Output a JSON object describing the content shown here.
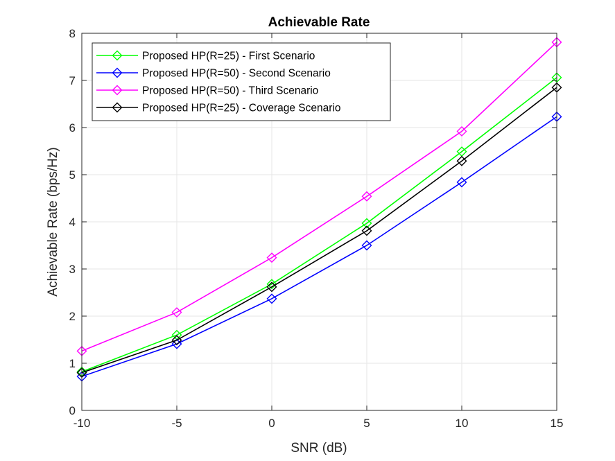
{
  "chart_data": {
    "type": "line",
    "title": "Achievable Rate",
    "xlabel": "SNR (dB)",
    "ylabel": "Achievable Rate (bps/Hz)",
    "xlim": [
      -10,
      15
    ],
    "ylim": [
      0,
      8
    ],
    "xticks": [
      -10,
      -5,
      0,
      5,
      10,
      15
    ],
    "yticks": [
      0,
      1,
      2,
      3,
      4,
      5,
      6,
      7,
      8
    ],
    "xtick_labels": [
      "-10",
      "-5",
      "0",
      "5",
      "10",
      "15"
    ],
    "ytick_labels": [
      "0",
      "1",
      "2",
      "3",
      "4",
      "5",
      "6",
      "7",
      "8"
    ],
    "grid": true,
    "legend_position": "top-left",
    "x": [
      -10,
      -5,
      0,
      5,
      10,
      15
    ],
    "series": [
      {
        "name": "Proposed HP(R=25) - First Scenario",
        "color": "#00ff00",
        "marker": "diamond",
        "values": [
          0.82,
          1.6,
          2.68,
          3.97,
          5.49,
          7.06
        ]
      },
      {
        "name": "Proposed HP(R=50) - Second Scenario",
        "color": "#0000ff",
        "marker": "diamond",
        "values": [
          0.72,
          1.41,
          2.37,
          3.5,
          4.84,
          6.23
        ]
      },
      {
        "name": "Proposed HP(R=50) - Third Scenario",
        "color": "#ff00ff",
        "marker": "diamond",
        "values": [
          1.26,
          2.08,
          3.24,
          4.54,
          5.92,
          7.81
        ]
      },
      {
        "name": "Proposed HP(R=25) - Coverage Scenario",
        "color": "#000000",
        "marker": "diamond",
        "values": [
          0.8,
          1.49,
          2.62,
          3.81,
          5.29,
          6.85
        ]
      }
    ]
  }
}
